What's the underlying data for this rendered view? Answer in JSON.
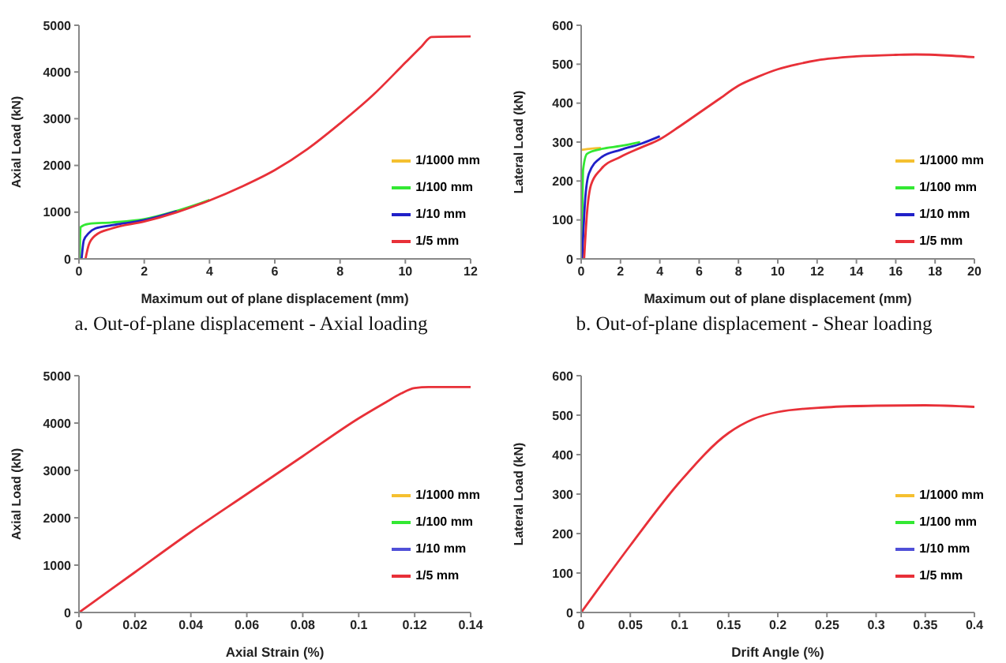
{
  "chart_data": [
    {
      "type": "line",
      "xlabel": "Maximum out of plane displacement (mm)",
      "ylabel": "Axial Load (kN)",
      "xlim": [
        0,
        12
      ],
      "xticks": [
        0,
        2,
        4,
        6,
        8,
        10,
        12
      ],
      "ylim": [
        0,
        5000
      ],
      "yticks": [
        0,
        1000,
        2000,
        3000,
        4000,
        5000
      ],
      "legend": "right",
      "marker": "none",
      "annotations": [
        "a. Out-of-plane displacement - Axial loading"
      ],
      "series": [
        {
          "name": "1/1000 mm",
          "color": "#f5c030"
        },
        {
          "name": "1/100 mm",
          "color": "#33e833",
          "x": [
            0.02,
            0.05,
            0.3,
            1,
            2,
            3,
            4
          ],
          "values": [
            0,
            680,
            750,
            780,
            850,
            1030,
            1260
          ]
        },
        {
          "name": "1/10 mm",
          "color": "#2020c8",
          "x": [
            0.08,
            0.15,
            0.3,
            0.5,
            1,
            2,
            3
          ],
          "values": [
            0,
            400,
            550,
            650,
            720,
            830,
            1020
          ]
        },
        {
          "name": "1/5 mm",
          "color": "#e83038",
          "x": [
            0.2,
            0.3,
            0.5,
            1,
            2,
            3,
            4,
            5,
            6,
            7,
            8,
            9,
            10,
            10.5,
            10.8,
            12
          ],
          "values": [
            0,
            300,
            500,
            650,
            800,
            1000,
            1250,
            1550,
            1900,
            2350,
            2900,
            3500,
            4200,
            4550,
            4750,
            4760
          ]
        }
      ]
    },
    {
      "type": "line",
      "xlabel": "Maximum out of plane displacement (mm)",
      "ylabel": "Lateral Load (kN)",
      "xlim": [
        0,
        20
      ],
      "xticks": [
        0,
        2,
        4,
        6,
        8,
        10,
        12,
        14,
        16,
        18,
        20
      ],
      "ylim": [
        0,
        600
      ],
      "yticks": [
        0,
        100,
        200,
        300,
        400,
        500,
        600
      ],
      "legend": "right",
      "marker": "none",
      "annotations": [
        "b. Out-of-plane displacement - Shear loading"
      ],
      "series": [
        {
          "name": "1/1000 mm",
          "color": "#f5c030",
          "x": [
            0.02,
            0.5,
            1
          ],
          "values": [
            280,
            283,
            285
          ]
        },
        {
          "name": "1/100 mm",
          "color": "#33e833",
          "x": [
            0.03,
            0.1,
            0.3,
            1,
            2,
            3
          ],
          "values": [
            0,
            230,
            270,
            282,
            290,
            300
          ]
        },
        {
          "name": "1/10 mm",
          "color": "#2020c8",
          "x": [
            0.05,
            0.2,
            0.4,
            1,
            2,
            3,
            4
          ],
          "values": [
            0,
            150,
            220,
            260,
            280,
            295,
            315
          ]
        },
        {
          "name": "1/5 mm",
          "color": "#e83038",
          "x": [
            0.15,
            0.3,
            0.5,
            1,
            2,
            3,
            4,
            5,
            6,
            7,
            8,
            9,
            10,
            11,
            12,
            14,
            16,
            17,
            18,
            20
          ],
          "values": [
            0,
            120,
            190,
            230,
            262,
            285,
            307,
            340,
            375,
            410,
            445,
            468,
            487,
            500,
            510,
            520,
            524,
            525,
            524,
            518
          ]
        }
      ]
    },
    {
      "type": "line",
      "xlabel": "Axial Strain (%)",
      "ylabel": "Axial Load (kN)",
      "xlim": [
        0,
        0.14
      ],
      "xticks": [
        0,
        0.02,
        0.04,
        0.06,
        0.08,
        0.1,
        0.12,
        0.14
      ],
      "ylim": [
        0,
        5000
      ],
      "yticks": [
        0,
        1000,
        2000,
        3000,
        4000,
        5000
      ],
      "legend": "right",
      "marker": "none",
      "series": [
        {
          "name": "1/1000 mm",
          "color": "#f5c030"
        },
        {
          "name": "1/100 mm",
          "color": "#33e833"
        },
        {
          "name": "1/10 mm",
          "color": "#5050d8"
        },
        {
          "name": "1/5 mm",
          "color": "#e83038",
          "x": [
            0,
            0.02,
            0.04,
            0.06,
            0.08,
            0.1,
            0.11,
            0.115,
            0.12,
            0.125,
            0.14
          ],
          "values": [
            0,
            850,
            1700,
            2500,
            3300,
            4100,
            4450,
            4620,
            4740,
            4760,
            4760
          ]
        }
      ]
    },
    {
      "type": "line",
      "xlabel": "Drift Angle (%)",
      "ylabel": "Lateral Load (kN)",
      "xlim": [
        0,
        0.4
      ],
      "xticks": [
        0,
        0.05,
        0.1,
        0.15,
        0.2,
        0.25,
        0.3,
        0.35,
        0.4
      ],
      "ylim": [
        0,
        600
      ],
      "yticks": [
        0,
        100,
        200,
        300,
        400,
        500,
        600
      ],
      "legend": "right",
      "marker": "none",
      "series": [
        {
          "name": "1/1000 mm",
          "color": "#f5c030"
        },
        {
          "name": "1/100 mm",
          "color": "#33e833"
        },
        {
          "name": "1/10 mm",
          "color": "#5050d8"
        },
        {
          "name": "1/5 mm",
          "color": "#e83038",
          "x": [
            0,
            0.05,
            0.1,
            0.15,
            0.175,
            0.2,
            0.25,
            0.3,
            0.35,
            0.4
          ],
          "values": [
            0,
            170,
            330,
            455,
            490,
            508,
            520,
            524,
            525,
            521
          ]
        }
      ]
    }
  ]
}
